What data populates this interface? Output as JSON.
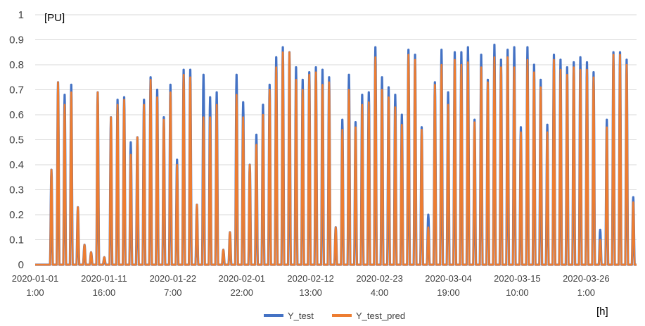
{
  "chart_data": {
    "type": "line",
    "title": "",
    "ylabel": "[PU]",
    "xlabel": "[h]",
    "ylim": [
      0,
      1
    ],
    "yticks": [
      "0",
      "0.1",
      "0.2",
      "0.3",
      "0.4",
      "0.5",
      "0.6",
      "0.7",
      "0.8",
      "0.9",
      "1"
    ],
    "x_start": "2020-01-01 1:00",
    "x_end": "2020-03-30 0:00",
    "x_step": "1 h",
    "xtick_labels": [
      {
        "date": "2020-01-01",
        "time": "1:00"
      },
      {
        "date": "2020-01-11",
        "time": "16:00"
      },
      {
        "date": "2020-01-22",
        "time": "7:00"
      },
      {
        "date": "2020-02-01",
        "time": "22:00"
      },
      {
        "date": "2020-02-12",
        "time": "13:00"
      },
      {
        "date": "2020-02-23",
        "time": "4:00"
      },
      {
        "date": "2020-03-04",
        "time": "19:00"
      },
      {
        "date": "2020-03-15",
        "time": "10:00"
      },
      {
        "date": "2020-03-26",
        "time": "1:00"
      }
    ],
    "grid": "horizontal",
    "legend_position": "bottom",
    "series": [
      {
        "name": "Y_test",
        "color": "#4472C4",
        "daily_peaks": [
          0.0,
          0.0,
          0.38,
          0.73,
          0.68,
          0.72,
          0.23,
          0.08,
          0.05,
          0.69,
          0.03,
          0.59,
          0.66,
          0.67,
          0.49,
          0.51,
          0.66,
          0.75,
          0.7,
          0.59,
          0.72,
          0.42,
          0.78,
          0.78,
          0.24,
          0.76,
          0.67,
          0.69,
          0.06,
          0.13,
          0.76,
          0.65,
          0.4,
          0.52,
          0.64,
          0.72,
          0.83,
          0.87,
          0.85,
          0.79,
          0.74,
          0.77,
          0.79,
          0.78,
          0.75,
          0.15,
          0.58,
          0.76,
          0.57,
          0.68,
          0.69,
          0.87,
          0.75,
          0.71,
          0.68,
          0.6,
          0.86,
          0.84,
          0.55,
          0.2,
          0.73,
          0.86,
          0.69,
          0.85,
          0.85,
          0.87,
          0.58,
          0.84,
          0.74,
          0.88,
          0.82,
          0.86,
          0.87,
          0.55,
          0.87,
          0.8,
          0.74,
          0.56,
          0.84,
          0.82,
          0.79,
          0.81,
          0.83,
          0.81,
          0.77,
          0.14,
          0.58,
          0.85,
          0.85,
          0.82,
          0.27
        ],
        "values": []
      },
      {
        "name": "Y_test_pred",
        "color": "#ED7D31",
        "daily_peaks": [
          0.0,
          0.0,
          0.38,
          0.73,
          0.64,
          0.69,
          0.23,
          0.08,
          0.05,
          0.69,
          0.03,
          0.59,
          0.64,
          0.66,
          0.44,
          0.51,
          0.64,
          0.74,
          0.67,
          0.58,
          0.69,
          0.4,
          0.76,
          0.75,
          0.24,
          0.59,
          0.59,
          0.64,
          0.06,
          0.13,
          0.68,
          0.59,
          0.4,
          0.48,
          0.6,
          0.7,
          0.79,
          0.85,
          0.85,
          0.74,
          0.7,
          0.76,
          0.77,
          0.72,
          0.73,
          0.15,
          0.54,
          0.7,
          0.55,
          0.64,
          0.65,
          0.83,
          0.7,
          0.67,
          0.63,
          0.56,
          0.84,
          0.82,
          0.54,
          0.15,
          0.72,
          0.8,
          0.64,
          0.82,
          0.8,
          0.81,
          0.57,
          0.79,
          0.73,
          0.83,
          0.79,
          0.83,
          0.79,
          0.53,
          0.82,
          0.77,
          0.71,
          0.53,
          0.82,
          0.78,
          0.76,
          0.79,
          0.78,
          0.78,
          0.75,
          0.1,
          0.55,
          0.84,
          0.84,
          0.8,
          0.25
        ],
        "values": []
      }
    ]
  }
}
